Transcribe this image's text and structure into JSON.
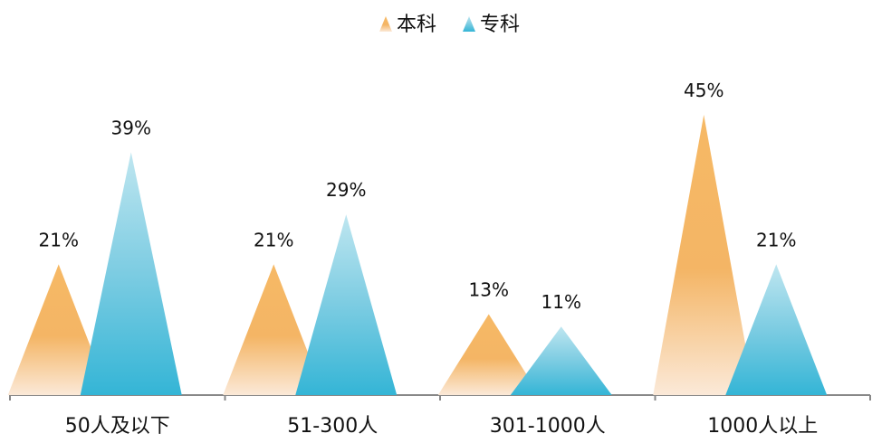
{
  "chart_data": {
    "type": "bar",
    "categories": [
      "50人及以下",
      "51-300人",
      "301-1000人",
      "1000人以上"
    ],
    "series": [
      {
        "name": "本科",
        "values": [
          21,
          21,
          13,
          45
        ],
        "labels": [
          "21%",
          "21%",
          "13%",
          "45%"
        ],
        "color": "#F3A94A"
      },
      {
        "name": "专科",
        "values": [
          39,
          29,
          11,
          21
        ],
        "labels": [
          "39%",
          "29%",
          "11%",
          "21%"
        ],
        "color": "#3BB8D8"
      }
    ],
    "title": "",
    "xlabel": "",
    "ylabel": "",
    "ylim": [
      0,
      45
    ],
    "grid": false,
    "legend_position": "top-center",
    "unit": "%"
  }
}
